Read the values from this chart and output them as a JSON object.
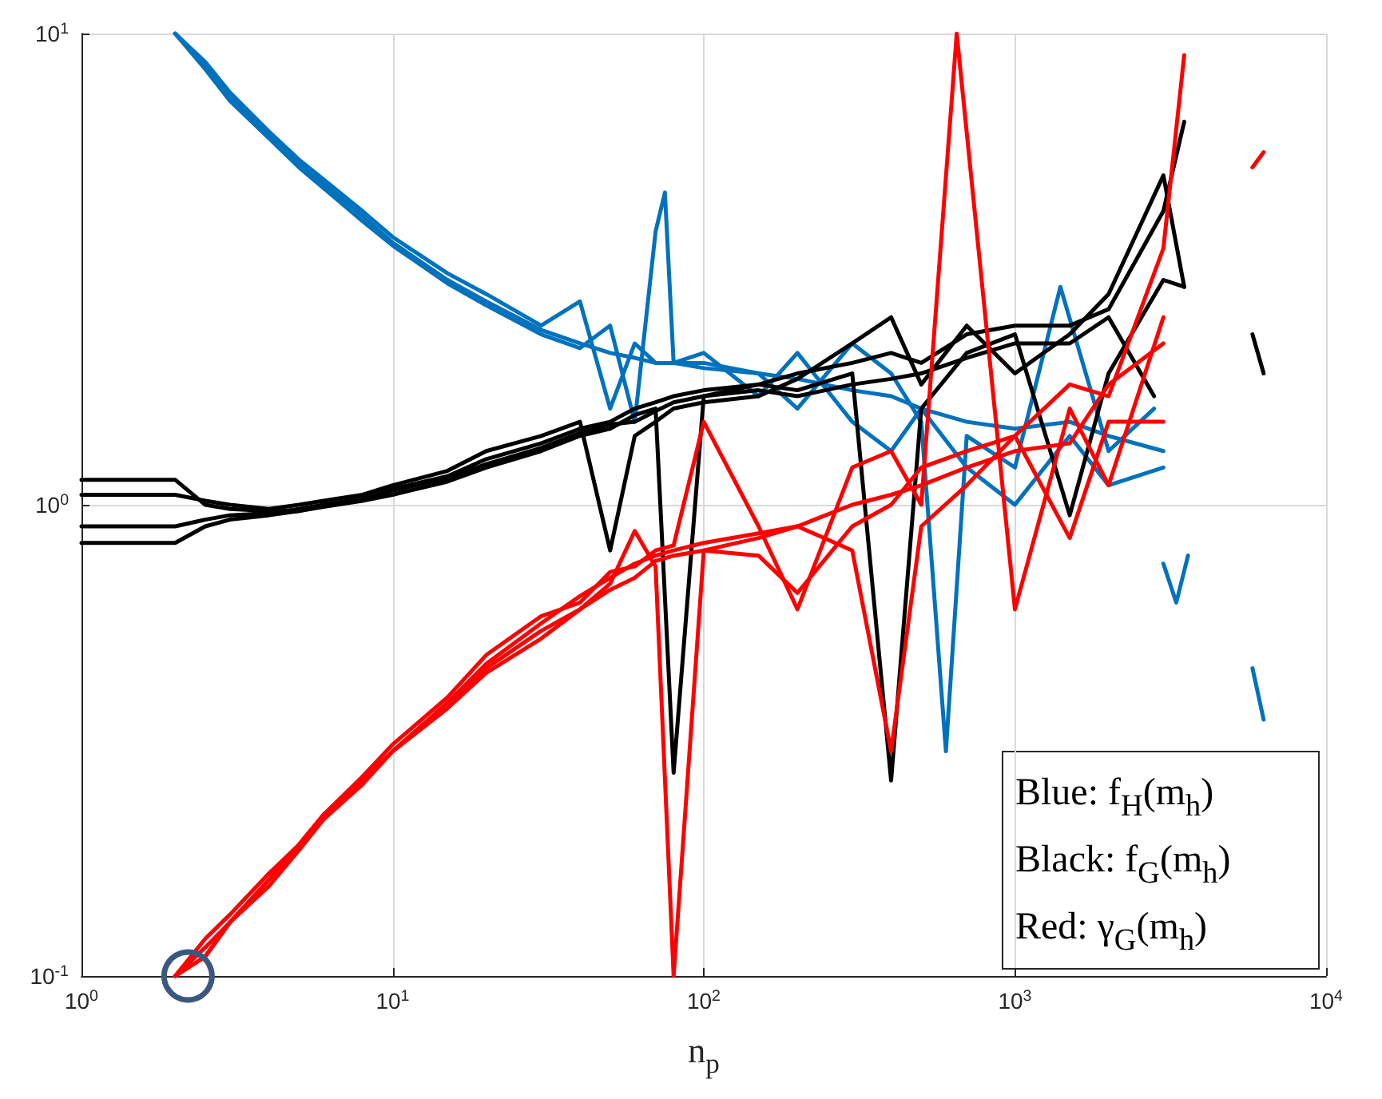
{
  "chart_data": {
    "type": "line",
    "xlabel": "n$_{p}$",
    "log": "xy",
    "grid": true,
    "marker": "none",
    "line_style": "solid",
    "xlim": [
      1,
      10000
    ],
    "ylim": [
      0.1,
      10
    ],
    "xticks": [
      {
        "value": 1,
        "label": "10$^{0}$"
      },
      {
        "value": 10,
        "label": "10$^{1}$"
      },
      {
        "value": 100,
        "label": "10$^{2}$"
      },
      {
        "value": 1000,
        "label": "10$^{3}$"
      },
      {
        "value": 10000,
        "label": "10$^{4}$"
      }
    ],
    "yticks": [
      {
        "value": 0.1,
        "label": "10$^{-1}$"
      },
      {
        "value": 1,
        "label": "10$^{0}$"
      },
      {
        "value": 10,
        "label": "10$^{1}$"
      }
    ],
    "annotations": [
      "Blue: f$_{H}$(m$_{h}$)",
      "Black: f$_{G}$(m$_{h}$)",
      "Red: γ$_{G}$(m$_{h}$)"
    ],
    "series": [
      {
        "color": "#0072bd",
        "x": [
          2,
          2.5,
          3,
          4,
          5,
          6,
          8,
          10,
          15,
          20,
          30,
          40,
          50,
          60,
          70,
          80,
          100,
          150,
          200,
          300,
          400,
          500,
          700,
          1000,
          1500,
          2000,
          3000
        ],
        "values": [
          10,
          8.5,
          7.3,
          6.1,
          5.3,
          4.8,
          4.1,
          3.6,
          3.0,
          2.7,
          2.35,
          2.2,
          2.1,
          2.05,
          2.0,
          2.0,
          1.95,
          1.9,
          1.85,
          1.75,
          1.7,
          1.6,
          1.5,
          1.45,
          1.5,
          1.4,
          1.3
        ]
      },
      {
        "color": "#0072bd",
        "x": [
          2,
          2.5,
          3,
          4,
          5,
          6,
          8,
          10,
          15,
          20,
          30,
          40,
          50,
          60,
          70,
          80,
          100,
          150,
          200,
          300,
          400,
          500,
          700,
          1000,
          1500,
          2000,
          3000
        ],
        "values": [
          10,
          8.7,
          7.5,
          6.2,
          5.4,
          4.9,
          4.2,
          3.7,
          3.1,
          2.8,
          2.4,
          2.7,
          1.6,
          2.2,
          2.0,
          2.0,
          2.1,
          1.7,
          2.1,
          1.5,
          1.3,
          1.6,
          1.2,
          1.0,
          1.4,
          1.1,
          1.2
        ]
      },
      {
        "color": "#0072bd",
        "x": [
          2,
          2.5,
          3,
          4,
          5,
          6,
          8,
          10,
          15,
          20,
          30,
          40,
          50,
          60,
          70,
          75,
          80,
          100,
          150,
          200,
          300,
          400,
          500,
          600,
          700,
          1000,
          1400,
          2000,
          2800
        ],
        "values": [
          10,
          8.4,
          7.2,
          6.0,
          5.2,
          4.7,
          4.0,
          3.55,
          2.95,
          2.65,
          2.3,
          2.15,
          2.4,
          1.5,
          3.8,
          4.6,
          2.0,
          2.0,
          1.9,
          1.6,
          2.2,
          1.9,
          1.5,
          0.3,
          1.4,
          1.2,
          2.9,
          1.3,
          1.6
        ]
      },
      {
        "color": "#0072bd",
        "x": [
          3000,
          3300,
          3600,
          4500,
          5800,
          6300
        ],
        "values": [
          0.75,
          0.62,
          0.78,
          null,
          0.45,
          0.35
        ]
      },
      {
        "color": "#000000",
        "x": [
          1,
          2,
          2.5,
          3,
          4,
          5,
          6,
          8,
          10,
          15,
          20,
          30,
          40,
          50,
          60,
          70,
          80,
          100,
          150,
          200,
          300,
          400,
          500,
          700,
          1000,
          1500,
          2000,
          3000,
          3500
        ],
        "values": [
          1.13,
          1.13,
          1.0,
          0.98,
          0.97,
          0.97,
          1.0,
          1.03,
          1.08,
          1.15,
          1.25,
          1.35,
          1.45,
          1.5,
          1.6,
          1.65,
          1.7,
          1.75,
          1.8,
          1.9,
          2.0,
          2.1,
          2.0,
          2.3,
          2.4,
          2.4,
          2.6,
          4.2,
          6.5
        ]
      },
      {
        "color": "#000000",
        "x": [
          1,
          2,
          2.5,
          3,
          4,
          5,
          6,
          8,
          10,
          15,
          20,
          30,
          40,
          50,
          60,
          70,
          80,
          100,
          150,
          200,
          300,
          400,
          500,
          700,
          1000,
          1500,
          2000,
          3000,
          3500
        ],
        "values": [
          0.83,
          0.83,
          0.9,
          0.93,
          0.95,
          0.97,
          0.99,
          1.02,
          1.05,
          1.12,
          1.2,
          1.3,
          1.4,
          1.45,
          1.55,
          1.6,
          0.27,
          1.7,
          1.8,
          1.75,
          1.9,
          0.26,
          1.6,
          2.1,
          2.3,
          0.95,
          1.9,
          3.0,
          2.9
        ]
      },
      {
        "color": "#000000",
        "x": [
          1,
          2,
          2.5,
          3,
          4,
          5,
          6,
          8,
          10,
          15,
          20,
          30,
          40,
          50,
          60,
          70,
          80,
          100,
          150,
          200,
          300,
          400,
          500,
          700,
          1000,
          1500,
          2000,
          3000,
          3500
        ],
        "values": [
          1.05,
          1.05,
          1.02,
          1.0,
          0.98,
          1.0,
          1.02,
          1.05,
          1.1,
          1.18,
          1.3,
          1.4,
          1.5,
          0.8,
          1.4,
          1.5,
          1.6,
          1.65,
          1.7,
          1.85,
          2.2,
          2.5,
          1.8,
          2.4,
          1.9,
          2.3,
          2.8,
          5.0,
          2.9
        ]
      },
      {
        "color": "#000000",
        "x": [
          1,
          2,
          2.5,
          3,
          4,
          5,
          6,
          8,
          10,
          15,
          20,
          30,
          40,
          50,
          60,
          70,
          80,
          100,
          150,
          200,
          300,
          400,
          500,
          700,
          1000,
          1500,
          2000,
          2800
        ],
        "values": [
          0.9,
          0.9,
          0.93,
          0.95,
          0.96,
          0.98,
          1.0,
          1.03,
          1.07,
          1.14,
          1.22,
          1.32,
          1.42,
          1.48,
          1.5,
          1.58,
          1.65,
          1.7,
          1.75,
          1.7,
          1.8,
          1.85,
          1.9,
          2.05,
          2.2,
          2.2,
          2.5,
          1.7
        ]
      },
      {
        "color": "#000000",
        "x": [
          5800,
          6300
        ],
        "values": [
          2.3,
          1.9
        ]
      },
      {
        "color": "#ff0000",
        "x": [
          2,
          2.5,
          3,
          4,
          5,
          6,
          8,
          10,
          15,
          20,
          30,
          40,
          50,
          60,
          70,
          80,
          100,
          150,
          200,
          300,
          400,
          500,
          700,
          1000,
          1500,
          2000,
          3000
        ],
        "values": [
          0.1,
          0.115,
          0.13,
          0.16,
          0.19,
          0.22,
          0.26,
          0.3,
          0.38,
          0.46,
          0.56,
          0.64,
          0.7,
          0.75,
          0.78,
          0.8,
          0.83,
          0.87,
          0.9,
          1.0,
          1.05,
          1.1,
          1.2,
          1.3,
          1.35,
          1.8,
          2.2
        ]
      },
      {
        "color": "#ff0000",
        "x": [
          2,
          2.5,
          3,
          4,
          5,
          6,
          8,
          10,
          15,
          20,
          30,
          40,
          50,
          60,
          70,
          80,
          100,
          150,
          200,
          300,
          400,
          500,
          700,
          1000,
          1500,
          2000,
          3000,
          3500
        ],
        "values": [
          0.1,
          0.11,
          0.13,
          0.155,
          0.185,
          0.215,
          0.255,
          0.3,
          0.37,
          0.45,
          0.54,
          0.6,
          0.68,
          0.88,
          0.74,
          0.1,
          0.8,
          0.85,
          0.9,
          0.8,
          0.3,
          0.9,
          1.1,
          1.4,
          1.8,
          1.7,
          3.5,
          9.0
        ]
      },
      {
        "color": "#ff0000",
        "x": [
          2,
          2.5,
          3,
          4,
          5,
          6,
          8,
          10,
          15,
          20,
          30,
          40,
          50,
          60,
          70,
          80,
          100,
          150,
          200,
          300,
          400,
          500,
          650,
          1000,
          1500,
          2000,
          3000
        ],
        "values": [
          0.1,
          0.12,
          0.135,
          0.165,
          0.19,
          0.22,
          0.265,
          0.31,
          0.39,
          0.48,
          0.58,
          0.62,
          0.72,
          0.74,
          0.8,
          0.82,
          1.5,
          0.9,
          0.6,
          1.2,
          1.3,
          1.0,
          10,
          0.6,
          1.6,
          1.1,
          2.5
        ]
      },
      {
        "color": "#ff0000",
        "x": [
          2,
          2.5,
          3,
          4,
          5,
          6,
          8,
          10,
          15,
          20,
          30,
          40,
          50,
          60,
          70,
          80,
          100,
          150,
          200,
          300,
          400,
          500,
          700,
          1000,
          1500,
          2000,
          3000
        ],
        "values": [
          0.1,
          0.11,
          0.13,
          0.16,
          0.19,
          0.22,
          0.26,
          0.3,
          0.37,
          0.44,
          0.52,
          0.6,
          0.66,
          0.7,
          0.76,
          0.78,
          0.8,
          0.78,
          0.65,
          0.9,
          1.0,
          1.2,
          1.3,
          1.4,
          0.85,
          1.5,
          1.5
        ]
      },
      {
        "color": "#ff0000",
        "x": [
          5800,
          6300
        ],
        "values": [
          5.2,
          5.6
        ]
      },
      {
        "type": "scatter",
        "marker": "circle",
        "color": "#3b5780",
        "x": [
          2.2
        ],
        "values": [
          0.1
        ]
      }
    ]
  }
}
